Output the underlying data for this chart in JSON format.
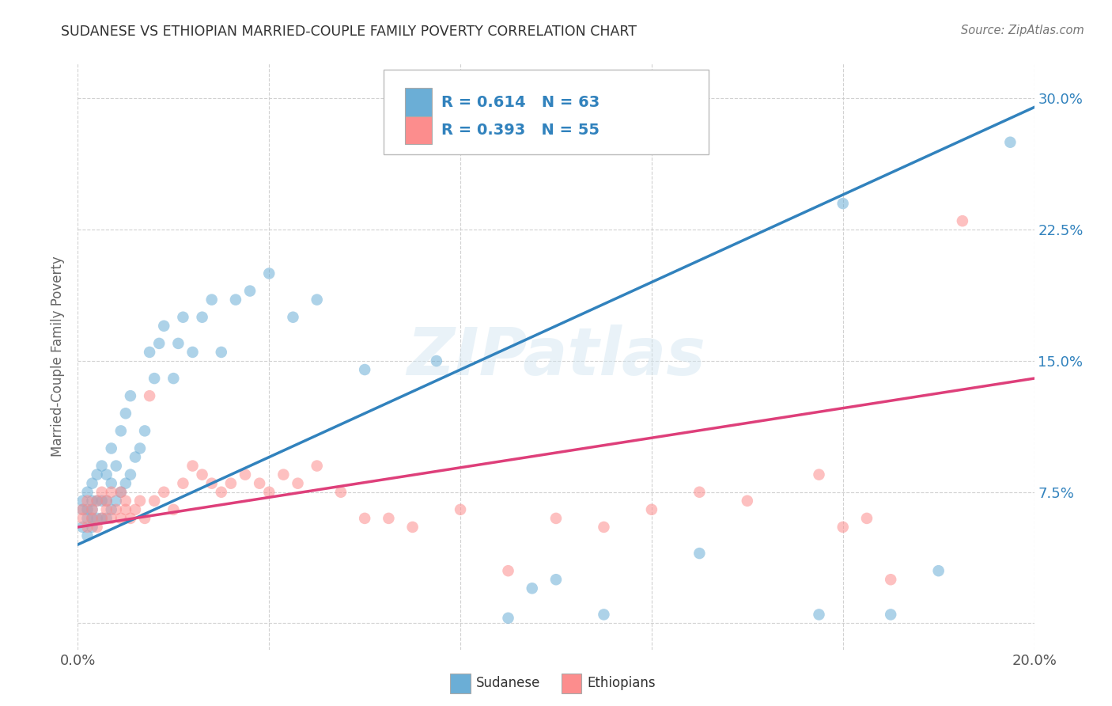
{
  "title": "SUDANESE VS ETHIOPIAN MARRIED-COUPLE FAMILY POVERTY CORRELATION CHART",
  "source": "Source: ZipAtlas.com",
  "ylabel": "Married-Couple Family Poverty",
  "xlim": [
    0.0,
    0.2
  ],
  "ylim": [
    -0.015,
    0.32
  ],
  "xticks": [
    0.0,
    0.04,
    0.08,
    0.12,
    0.16,
    0.2
  ],
  "xticklabels": [
    "0.0%",
    "",
    "",
    "",
    "",
    "20.0%"
  ],
  "yticks": [
    0.0,
    0.075,
    0.15,
    0.225,
    0.3
  ],
  "yticklabels": [
    "",
    "7.5%",
    "15.0%",
    "22.5%",
    "30.0%"
  ],
  "blue_color": "#6baed6",
  "pink_color": "#fc8d8d",
  "blue_line_color": "#3182bd",
  "pink_line_color": "#de3f7a",
  "blue_R": 0.614,
  "blue_N": 63,
  "pink_R": 0.393,
  "pink_N": 55,
  "legend_text_color": "#3182bd",
  "watermark": "ZIPatlas",
  "background_color": "#ffffff",
  "grid_color": "#cccccc",
  "title_color": "#333333",
  "blue_line_x": [
    0.0,
    0.2
  ],
  "blue_line_y": [
    0.045,
    0.295
  ],
  "pink_line_x": [
    0.0,
    0.2
  ],
  "pink_line_y": [
    0.055,
    0.14
  ],
  "blue_scatter_x": [
    0.001,
    0.001,
    0.001,
    0.002,
    0.002,
    0.002,
    0.002,
    0.003,
    0.003,
    0.003,
    0.003,
    0.003,
    0.004,
    0.004,
    0.004,
    0.005,
    0.005,
    0.005,
    0.006,
    0.006,
    0.006,
    0.007,
    0.007,
    0.007,
    0.008,
    0.008,
    0.009,
    0.009,
    0.01,
    0.01,
    0.011,
    0.011,
    0.012,
    0.013,
    0.014,
    0.015,
    0.016,
    0.017,
    0.018,
    0.02,
    0.021,
    0.022,
    0.024,
    0.026,
    0.028,
    0.03,
    0.033,
    0.036,
    0.04,
    0.045,
    0.05,
    0.06,
    0.075,
    0.09,
    0.095,
    0.1,
    0.11,
    0.13,
    0.155,
    0.16,
    0.17,
    0.18,
    0.195
  ],
  "blue_scatter_y": [
    0.055,
    0.065,
    0.07,
    0.05,
    0.06,
    0.065,
    0.075,
    0.055,
    0.06,
    0.065,
    0.07,
    0.08,
    0.06,
    0.07,
    0.085,
    0.06,
    0.07,
    0.09,
    0.06,
    0.07,
    0.085,
    0.065,
    0.08,
    0.1,
    0.07,
    0.09,
    0.075,
    0.11,
    0.08,
    0.12,
    0.085,
    0.13,
    0.095,
    0.1,
    0.11,
    0.155,
    0.14,
    0.16,
    0.17,
    0.14,
    0.16,
    0.175,
    0.155,
    0.175,
    0.185,
    0.155,
    0.185,
    0.19,
    0.2,
    0.175,
    0.185,
    0.145,
    0.15,
    0.003,
    0.02,
    0.025,
    0.005,
    0.04,
    0.005,
    0.24,
    0.005,
    0.03,
    0.275
  ],
  "pink_scatter_x": [
    0.001,
    0.001,
    0.002,
    0.002,
    0.003,
    0.003,
    0.004,
    0.004,
    0.005,
    0.005,
    0.006,
    0.006,
    0.007,
    0.007,
    0.008,
    0.009,
    0.009,
    0.01,
    0.01,
    0.011,
    0.012,
    0.013,
    0.014,
    0.015,
    0.016,
    0.018,
    0.02,
    0.022,
    0.024,
    0.026,
    0.028,
    0.03,
    0.032,
    0.035,
    0.038,
    0.04,
    0.043,
    0.046,
    0.05,
    0.055,
    0.06,
    0.065,
    0.07,
    0.08,
    0.09,
    0.1,
    0.11,
    0.12,
    0.13,
    0.14,
    0.155,
    0.16,
    0.165,
    0.17,
    0.185
  ],
  "pink_scatter_y": [
    0.06,
    0.065,
    0.055,
    0.07,
    0.06,
    0.065,
    0.055,
    0.07,
    0.06,
    0.075,
    0.065,
    0.07,
    0.06,
    0.075,
    0.065,
    0.06,
    0.075,
    0.065,
    0.07,
    0.06,
    0.065,
    0.07,
    0.06,
    0.13,
    0.07,
    0.075,
    0.065,
    0.08,
    0.09,
    0.085,
    0.08,
    0.075,
    0.08,
    0.085,
    0.08,
    0.075,
    0.085,
    0.08,
    0.09,
    0.075,
    0.06,
    0.06,
    0.055,
    0.065,
    0.03,
    0.06,
    0.055,
    0.065,
    0.075,
    0.07,
    0.085,
    0.055,
    0.06,
    0.025,
    0.23
  ]
}
